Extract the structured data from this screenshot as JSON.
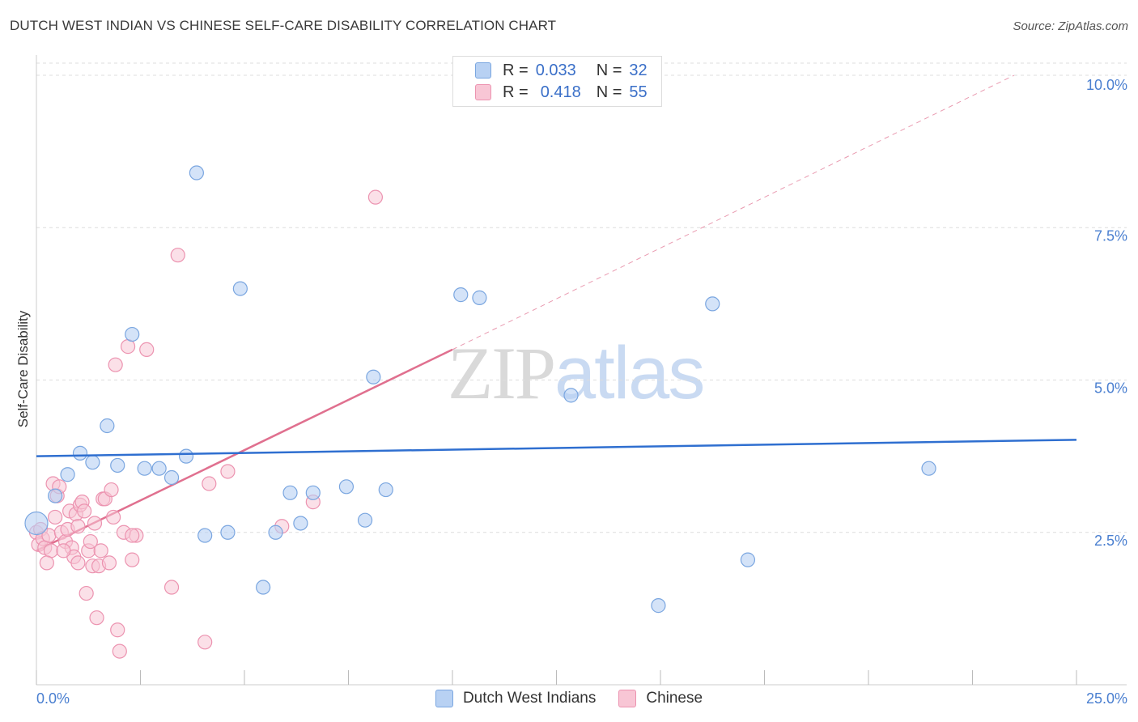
{
  "title": "DUTCH WEST INDIAN VS CHINESE SELF-CARE DISABILITY CORRELATION CHART",
  "source": "Source: ZipAtlas.com",
  "watermark": {
    "zip": "ZIP",
    "atlas": "atlas"
  },
  "colors": {
    "blue_fill": "#b8d1f3",
    "blue_stroke": "#7aa6e0",
    "blue_line": "#2f6fd0",
    "pink_fill": "#f8c6d5",
    "pink_stroke": "#ec93b0",
    "pink_line": "#e0708f",
    "tick_text": "#4a7fd0",
    "grid": "#dddddd"
  },
  "legend": {
    "rows": [
      {
        "r_label": "R =",
        "r_value": "0.033",
        "n_label": "N =",
        "n_value": "32"
      },
      {
        "r_label": "R =",
        "r_value": "0.418",
        "n_label": "N =",
        "n_value": "55"
      }
    ]
  },
  "bottom_legend": {
    "blue": "Dutch West Indians",
    "pink": "Chinese"
  },
  "chart_data": {
    "type": "scatter",
    "title": "DUTCH WEST INDIAN VS CHINESE SELF-CARE DISABILITY CORRELATION CHART",
    "xlabel": "",
    "ylabel": "Self-Care Disability",
    "xlim": [
      0,
      25
    ],
    "ylim": [
      0,
      10.2
    ],
    "x_tick_labels": [
      "0.0%",
      "25.0%"
    ],
    "y_ticks": [
      2.5,
      5.0,
      7.5,
      10.0
    ],
    "y_tick_labels": [
      "2.5%",
      "5.0%",
      "7.5%",
      "10.0%"
    ],
    "grid": "horizontal dashed",
    "series": [
      {
        "name": "Dutch West Indians",
        "r": 0.033,
        "n": 32,
        "trend": {
          "x": [
            0,
            25
          ],
          "y": [
            3.75,
            4.02
          ]
        },
        "points": [
          [
            0,
            2.65
          ],
          [
            0.45,
            3.1
          ],
          [
            0.75,
            3.45
          ],
          [
            1.05,
            3.8
          ],
          [
            1.35,
            3.65
          ],
          [
            1.7,
            4.25
          ],
          [
            1.95,
            3.6
          ],
          [
            2.3,
            5.75
          ],
          [
            2.6,
            3.55
          ],
          [
            2.95,
            3.55
          ],
          [
            3.25,
            3.4
          ],
          [
            3.6,
            3.75
          ],
          [
            3.85,
            8.4
          ],
          [
            4.05,
            2.45
          ],
          [
            4.6,
            2.5
          ],
          [
            4.9,
            6.5
          ],
          [
            5.45,
            1.6
          ],
          [
            5.75,
            2.5
          ],
          [
            6.1,
            3.15
          ],
          [
            6.35,
            2.65
          ],
          [
            6.65,
            3.15
          ],
          [
            7.45,
            3.25
          ],
          [
            7.9,
            2.7
          ],
          [
            8.1,
            5.05
          ],
          [
            8.4,
            3.2
          ],
          [
            10.2,
            6.4
          ],
          [
            10.65,
            6.35
          ],
          [
            12.85,
            4.75
          ],
          [
            14.95,
            1.3
          ],
          [
            16.25,
            6.25
          ],
          [
            17.1,
            2.05
          ],
          [
            21.45,
            3.55
          ]
        ]
      },
      {
        "name": "Chinese",
        "r": 0.418,
        "n": 55,
        "trend": {
          "x": [
            0,
            10
          ],
          "y": [
            2.2,
            5.5
          ]
        },
        "trend_dashed": {
          "x": [
            10,
            23.5
          ],
          "y": [
            5.5,
            10.0
          ]
        },
        "points": [
          [
            0,
            2.5
          ],
          [
            0.05,
            2.3
          ],
          [
            0.1,
            2.55
          ],
          [
            0.15,
            2.4
          ],
          [
            0.2,
            2.25
          ],
          [
            0.3,
            2.45
          ],
          [
            0.35,
            2.2
          ],
          [
            0.4,
            3.3
          ],
          [
            0.45,
            2.75
          ],
          [
            0.5,
            3.1
          ],
          [
            0.55,
            3.25
          ],
          [
            0.6,
            2.5
          ],
          [
            0.7,
            2.35
          ],
          [
            0.75,
            2.55
          ],
          [
            0.8,
            2.85
          ],
          [
            0.85,
            2.25
          ],
          [
            0.9,
            2.1
          ],
          [
            0.95,
            2.8
          ],
          [
            1.0,
            2.0
          ],
          [
            1.05,
            2.95
          ],
          [
            1.1,
            3.0
          ],
          [
            1.15,
            2.85
          ],
          [
            1.2,
            1.5
          ],
          [
            1.25,
            2.2
          ],
          [
            1.3,
            2.35
          ],
          [
            1.35,
            1.95
          ],
          [
            1.4,
            2.65
          ],
          [
            1.45,
            1.1
          ],
          [
            1.5,
            1.95
          ],
          [
            1.55,
            2.2
          ],
          [
            1.6,
            3.05
          ],
          [
            1.65,
            3.05
          ],
          [
            1.75,
            2.0
          ],
          [
            1.8,
            3.2
          ],
          [
            1.85,
            2.75
          ],
          [
            1.9,
            5.25
          ],
          [
            1.95,
            0.9
          ],
          [
            2.0,
            0.55
          ],
          [
            2.1,
            2.5
          ],
          [
            2.2,
            5.55
          ],
          [
            2.3,
            2.05
          ],
          [
            2.4,
            2.45
          ],
          [
            2.65,
            5.5
          ],
          [
            3.25,
            1.6
          ],
          [
            3.4,
            7.05
          ],
          [
            4.05,
            0.7
          ],
          [
            4.15,
            3.3
          ],
          [
            4.6,
            3.5
          ],
          [
            5.9,
            2.6
          ],
          [
            6.65,
            3.0
          ],
          [
            8.15,
            8.0
          ],
          [
            0.25,
            2.0
          ],
          [
            0.65,
            2.2
          ],
          [
            1.0,
            2.6
          ],
          [
            2.3,
            2.45
          ]
        ]
      }
    ]
  }
}
